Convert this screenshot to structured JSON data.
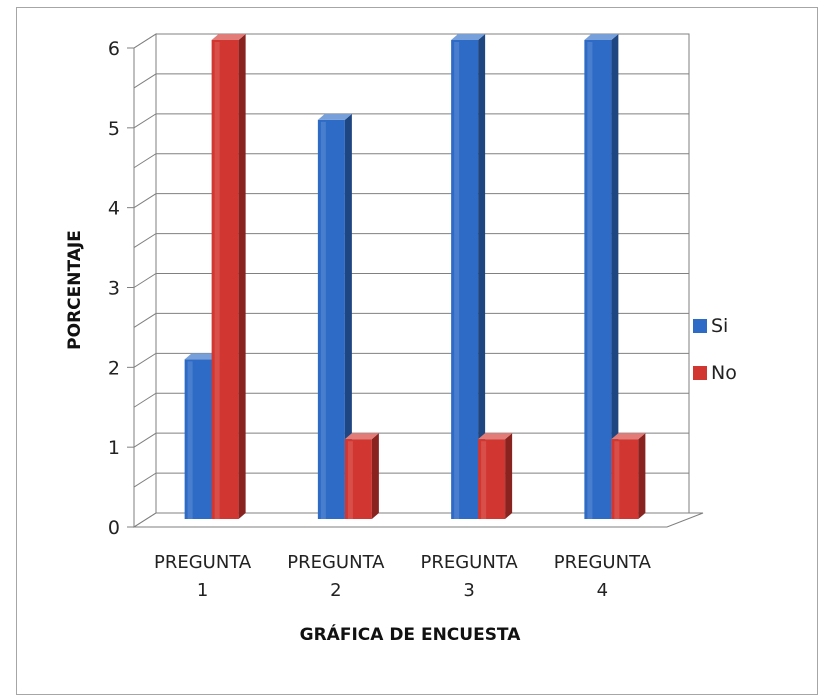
{
  "chart_data": {
    "type": "bar",
    "title": "",
    "xlabel": "GRÁFICA DE ENCUESTA",
    "ylabel": "PORCENTAJE",
    "categories": [
      [
        "PREGUNTA",
        "1"
      ],
      [
        "PREGUNTA",
        "2"
      ],
      [
        "PREGUNTA",
        "3"
      ],
      [
        "PREGUNTA",
        "4"
      ]
    ],
    "series": [
      {
        "name": "Si",
        "values": [
          2,
          5,
          6,
          6
        ],
        "color": "#2e6bc6"
      },
      {
        "name": "No",
        "values": [
          6,
          1,
          1,
          1
        ],
        "color": "#d23631"
      }
    ],
    "ylim": [
      0,
      6
    ],
    "yticks": [
      "0",
      "1",
      "2",
      "3",
      "4",
      "5",
      "6"
    ],
    "grid": true,
    "legend_position": "right",
    "style": "3d-column"
  }
}
